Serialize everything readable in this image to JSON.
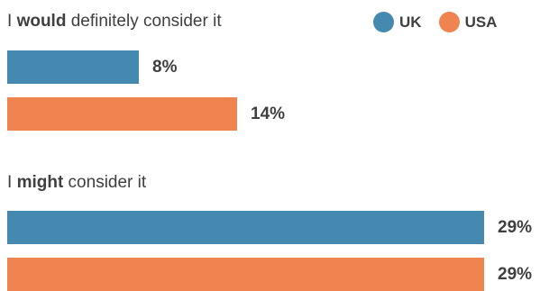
{
  "legend": [
    {
      "label": "UK",
      "color": "#4589b0"
    },
    {
      "label": "USA",
      "color": "#ef8450"
    }
  ],
  "groups": [
    {
      "title_prefix": "I ",
      "title_bold": "would",
      "title_suffix": " definitely consider it"
    },
    {
      "title_prefix": "I ",
      "title_bold": "might",
      "title_suffix": " consider it"
    }
  ],
  "chart_data": {
    "type": "bar",
    "orientation": "horizontal",
    "categories": [
      "I would definitely consider it",
      "I might consider it"
    ],
    "series": [
      {
        "name": "UK",
        "values": [
          8,
          29
        ],
        "labels": [
          "8%",
          "29%"
        ]
      },
      {
        "name": "USA",
        "values": [
          14,
          29
        ],
        "labels": [
          "14%",
          "29%"
        ]
      }
    ],
    "unit": "%",
    "legend_position": "top-right",
    "grid": false
  }
}
